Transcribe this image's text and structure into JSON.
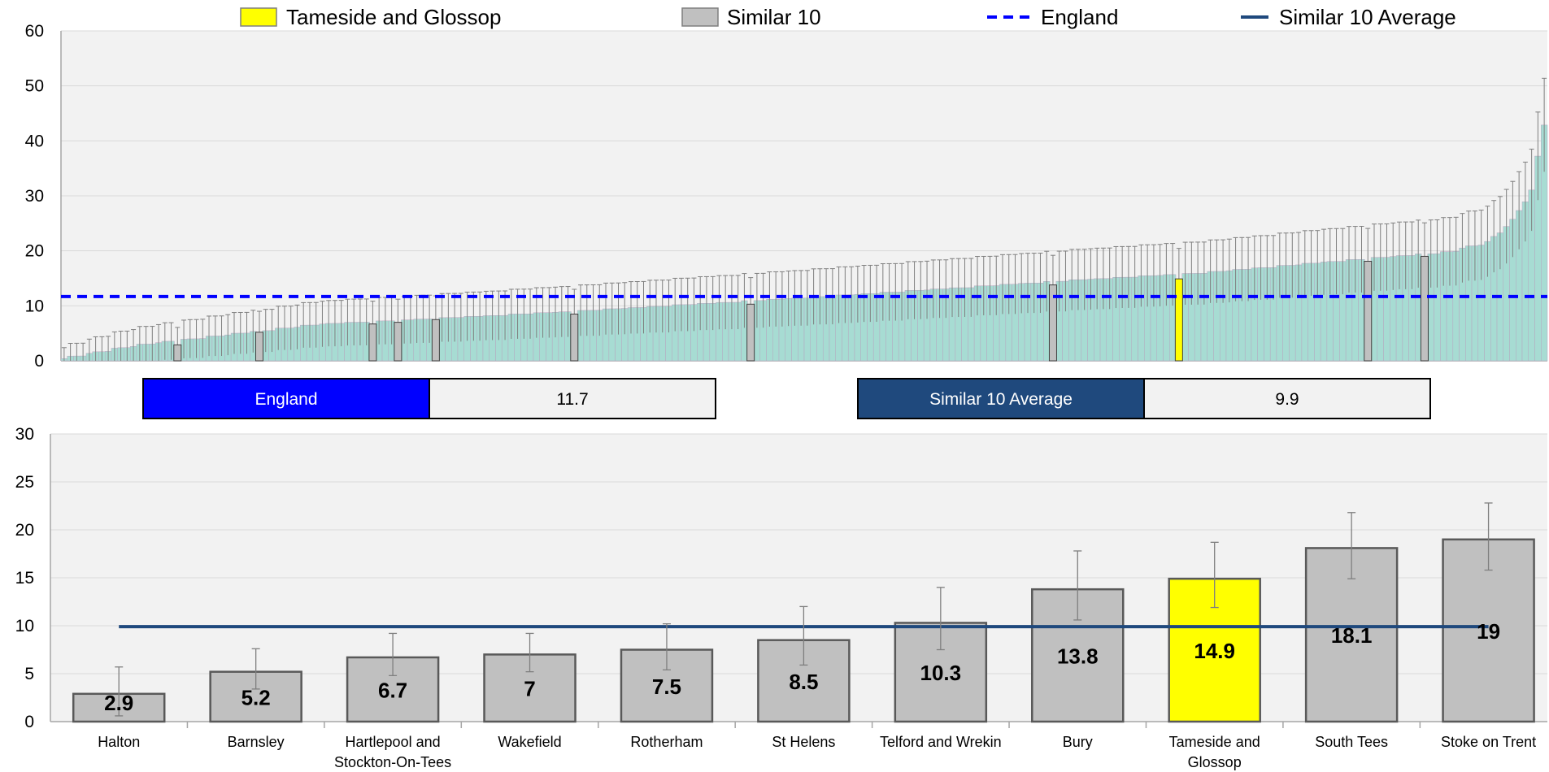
{
  "legend": {
    "items": [
      {
        "label": "Tameside and Glossop",
        "color": "#ffff00",
        "kind": "swatch"
      },
      {
        "label": "Similar 10",
        "color": "#c0c0c0",
        "kind": "swatch"
      },
      {
        "label": "England",
        "color": "#0000ff",
        "kind": "dashed-line"
      },
      {
        "label": "Similar 10 Average",
        "color": "#1f497d",
        "kind": "solid-line"
      }
    ]
  },
  "summary": {
    "england_label": "England",
    "england_value": "11.7",
    "similar_label": "Similar 10 Average",
    "similar_value": "9.9"
  },
  "colors": {
    "all_bars": "#a7dcd3",
    "highlight": "#ffff00",
    "similar": "#c0c0c0",
    "england": "#0000ff",
    "similar_avg": "#1f497d",
    "plot_bg": "#f2f2f2"
  },
  "chart_data": [
    {
      "type": "bar",
      "ylim": [
        0,
        60
      ],
      "yticks": [
        0,
        10,
        20,
        30,
        40,
        50,
        60
      ],
      "n_bars": 236,
      "england_line": 11.7,
      "bar_value_ramp": [
        [
          0,
          0.4
        ],
        [
          10,
          2.5
        ],
        [
          15,
          3.2
        ],
        [
          40,
          6.5
        ],
        [
          60,
          7.6
        ],
        [
          80,
          8.8
        ],
        [
          120,
          11.5
        ],
        [
          160,
          14.5
        ],
        [
          180,
          15.8
        ],
        [
          200,
          17.8
        ],
        [
          219,
          19.6
        ],
        [
          226,
          21.5
        ],
        [
          230,
          25.5
        ],
        [
          233,
          31
        ],
        [
          235,
          43
        ]
      ],
      "highlight": [
        {
          "index": 18,
          "value": 2.9,
          "group": "similar"
        },
        {
          "index": 31,
          "value": 5.2,
          "group": "similar"
        },
        {
          "index": 49,
          "value": 6.7,
          "group": "similar"
        },
        {
          "index": 53,
          "value": 7.0,
          "group": "similar"
        },
        {
          "index": 59,
          "value": 7.5,
          "group": "similar"
        },
        {
          "index": 81,
          "value": 8.5,
          "group": "similar"
        },
        {
          "index": 109,
          "value": 10.3,
          "group": "similar"
        },
        {
          "index": 157,
          "value": 13.8,
          "group": "similar"
        },
        {
          "index": 177,
          "value": 14.9,
          "group": "target"
        },
        {
          "index": 207,
          "value": 18.1,
          "group": "similar"
        },
        {
          "index": 216,
          "value": 19.0,
          "group": "similar"
        }
      ]
    },
    {
      "type": "bar",
      "ylim": [
        0,
        30
      ],
      "yticks": [
        0,
        5,
        10,
        15,
        20,
        25,
        30
      ],
      "categories": [
        "Halton",
        "Barnsley",
        "Hartlepool and Stockton-On-Tees",
        "Wakefield",
        "Rotherham",
        "St Helens",
        "Telford and Wrekin",
        "Bury",
        "Tameside and Glossop",
        "South Tees",
        "Stoke on Trent"
      ],
      "category_lines": [
        [
          "Halton"
        ],
        [
          "Barnsley"
        ],
        [
          "Hartlepool and",
          "Stockton-On-Tees"
        ],
        [
          "Wakefield"
        ],
        [
          "Rotherham"
        ],
        [
          "St Helens"
        ],
        [
          "Telford and Wrekin"
        ],
        [
          "Bury"
        ],
        [
          "Tameside and",
          "Glossop"
        ],
        [
          "South Tees"
        ],
        [
          "Stoke on Trent"
        ]
      ],
      "values": [
        2.9,
        5.2,
        6.7,
        7,
        7.5,
        8.5,
        10.3,
        13.8,
        14.9,
        18.1,
        19
      ],
      "value_labels": [
        "2.9",
        "5.2",
        "6.7",
        "7",
        "7.5",
        "8.5",
        "10.3",
        "13.8",
        "14.9",
        "18.1",
        "19"
      ],
      "ci_lower": [
        0.6,
        3.4,
        4.8,
        5.2,
        5.4,
        5.9,
        7.5,
        10.6,
        11.9,
        14.9,
        15.8
      ],
      "ci_upper": [
        5.7,
        7.6,
        9.2,
        9.2,
        10.2,
        12.0,
        14.0,
        17.8,
        18.7,
        21.8,
        22.8
      ],
      "highlight_index": 8,
      "similar_average": 9.9
    }
  ]
}
